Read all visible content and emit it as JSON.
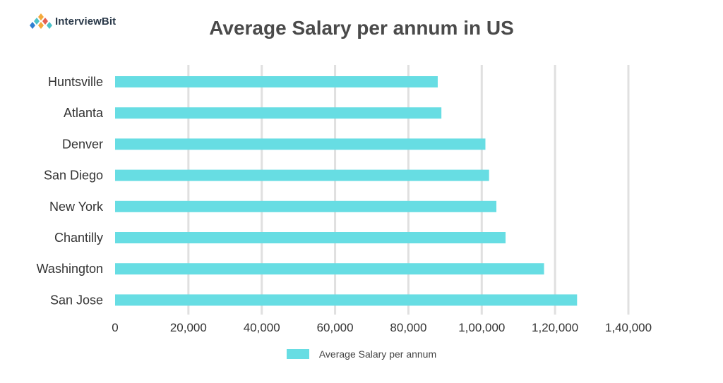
{
  "logo": {
    "text": "InterviewBit",
    "colors": [
      "#f4a93b",
      "#4cc3c9",
      "#2f7fd1",
      "#e35f52"
    ]
  },
  "chart_data": {
    "type": "bar",
    "orientation": "horizontal",
    "title": "Average Salary per annum in US",
    "categories": [
      "Huntsville",
      "Atlanta",
      "Denver",
      "San Diego",
      "New York",
      "Chantilly",
      "Washington",
      "San Jose"
    ],
    "series": [
      {
        "name": "Average Salary per annum",
        "values": [
          88000,
          89000,
          101000,
          102000,
          104000,
          106500,
          117000,
          126000
        ],
        "color": "#67dde3"
      }
    ],
    "xlim": [
      0,
      140000
    ],
    "xticks": [
      0,
      20000,
      40000,
      60000,
      80000,
      100000,
      120000,
      140000
    ],
    "xtick_labels": [
      "0",
      "20,000",
      "40,000",
      "60,000",
      "80,000",
      "1,00,000",
      "1,20,000",
      "1,40,000"
    ],
    "xlabel": "",
    "ylabel": "",
    "grid": "vertical",
    "grid_color": "#e0e0e0",
    "legend_position": "bottom"
  }
}
